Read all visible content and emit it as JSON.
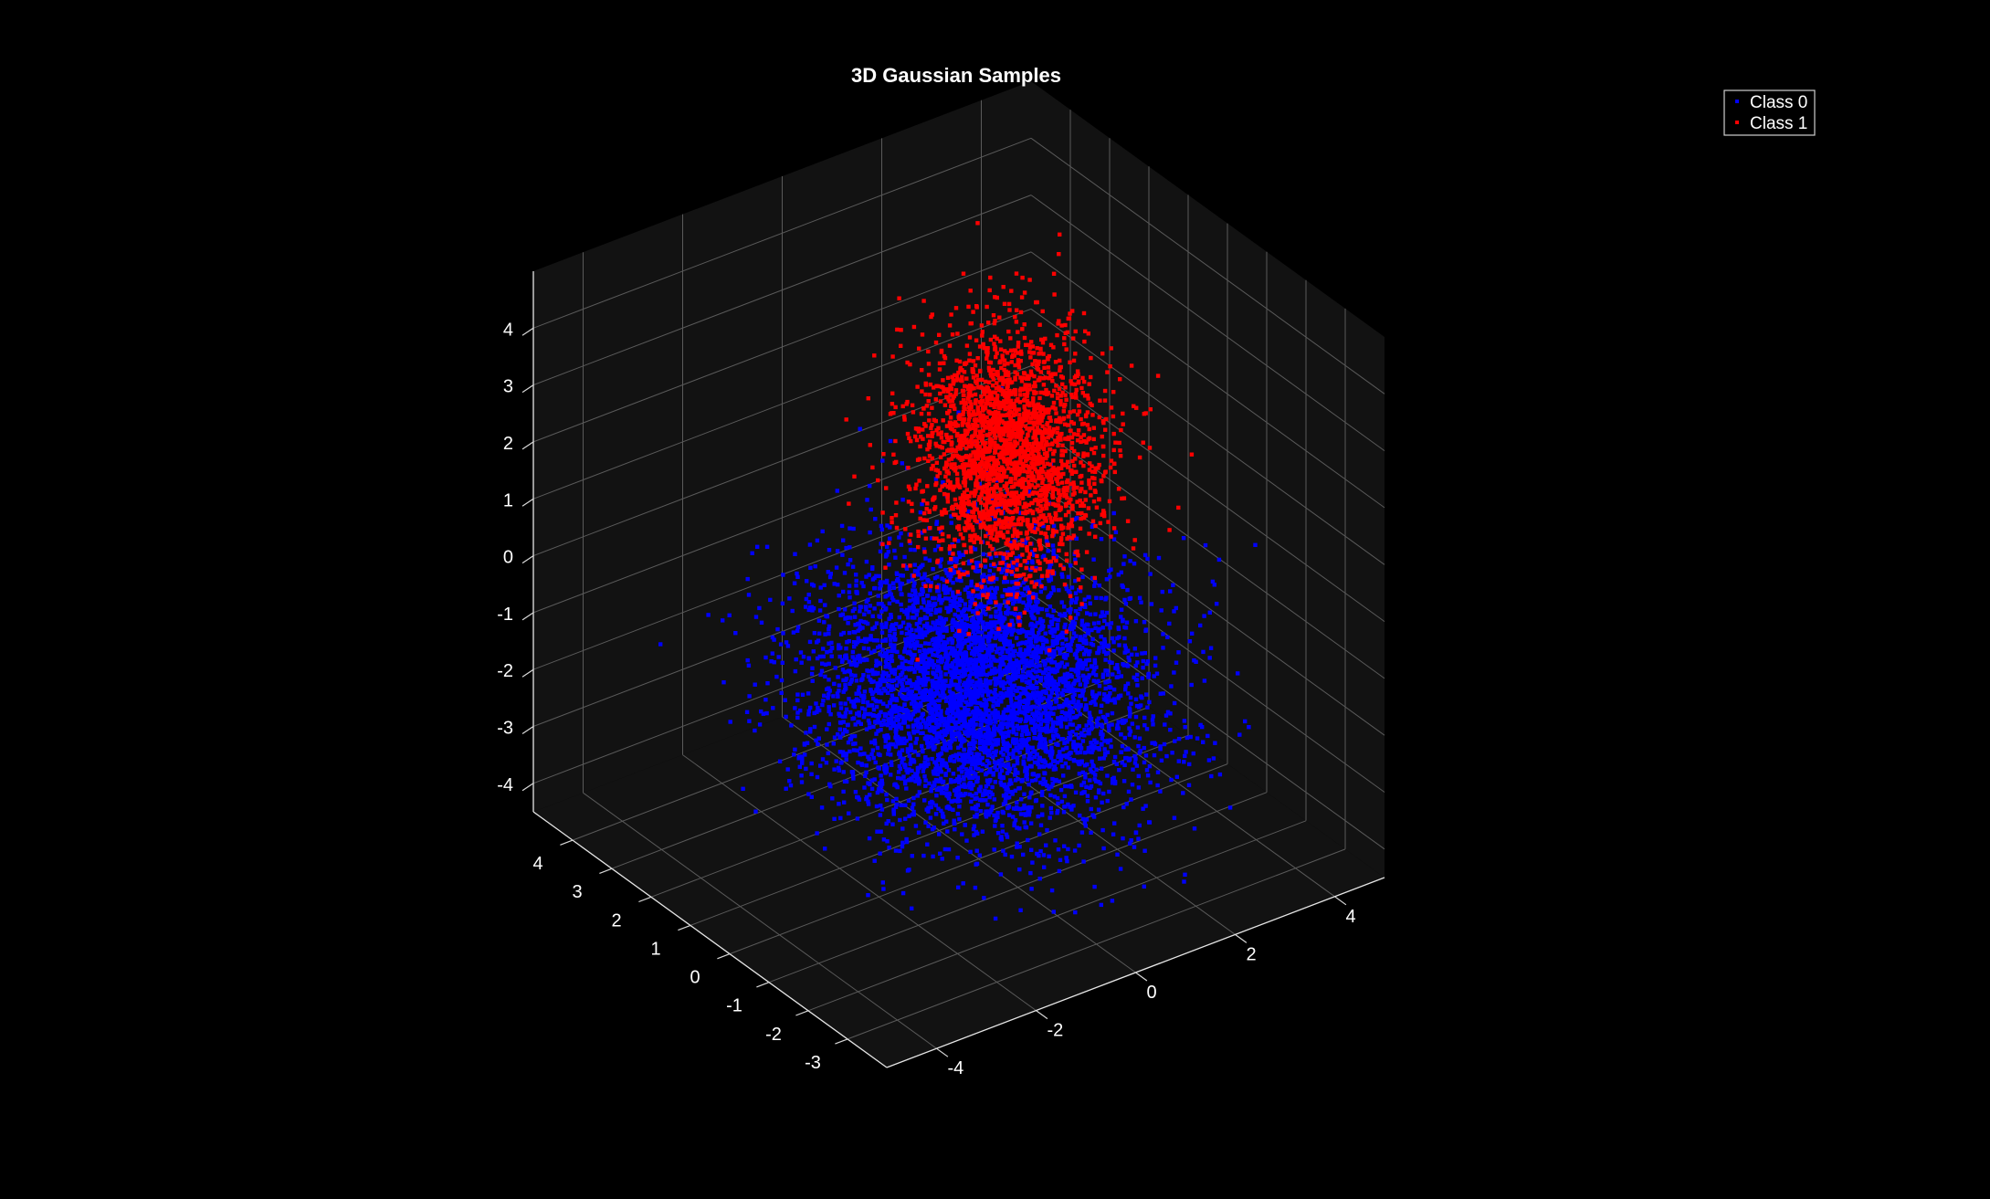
{
  "chart_data": {
    "type": "scatter",
    "subtype": "3d",
    "title": "3D Gaussian Samples",
    "xlabel": "",
    "ylabel": "",
    "zlabel": "",
    "xlim": [
      -5,
      5
    ],
    "ylim": [
      -4,
      5
    ],
    "zlim": [
      -4.5,
      5
    ],
    "x_ticks": [
      -4,
      -2,
      0,
      2,
      4
    ],
    "y_ticks": [
      -3,
      -2,
      -1,
      0,
      1,
      2,
      3,
      4
    ],
    "z_ticks": [
      -4,
      -3,
      -2,
      -1,
      0,
      1,
      2,
      3,
      4
    ],
    "x_tick_labels": [
      "-4",
      "-2",
      "0",
      "2",
      "4"
    ],
    "y_tick_labels": [
      "-3",
      "-2",
      "-1",
      "0",
      "1",
      "2",
      "3",
      "4"
    ],
    "z_tick_labels": [
      "-4",
      "-3",
      "-2",
      "-1",
      "0",
      "1",
      "2",
      "3",
      "4"
    ],
    "grid": true,
    "legend_position": "top-right",
    "background_color": "#000000",
    "axes_color": "#121212",
    "grid_color": "#5a5a5a",
    "text_color": "#ffffff",
    "series": [
      {
        "name": "Class 0",
        "color": "#0000ff",
        "distribution": "gaussian",
        "mean": [
          0,
          0,
          -1.5
        ],
        "std": [
          1.3,
          1.3,
          1.0
        ],
        "count": 5000
      },
      {
        "name": "Class 1",
        "color": "#ff0000",
        "distribution": "gaussian",
        "mean": [
          1.5,
          1.2,
          1.5
        ],
        "std": [
          0.75,
          0.75,
          1.0
        ],
        "count": 2500
      }
    ]
  }
}
